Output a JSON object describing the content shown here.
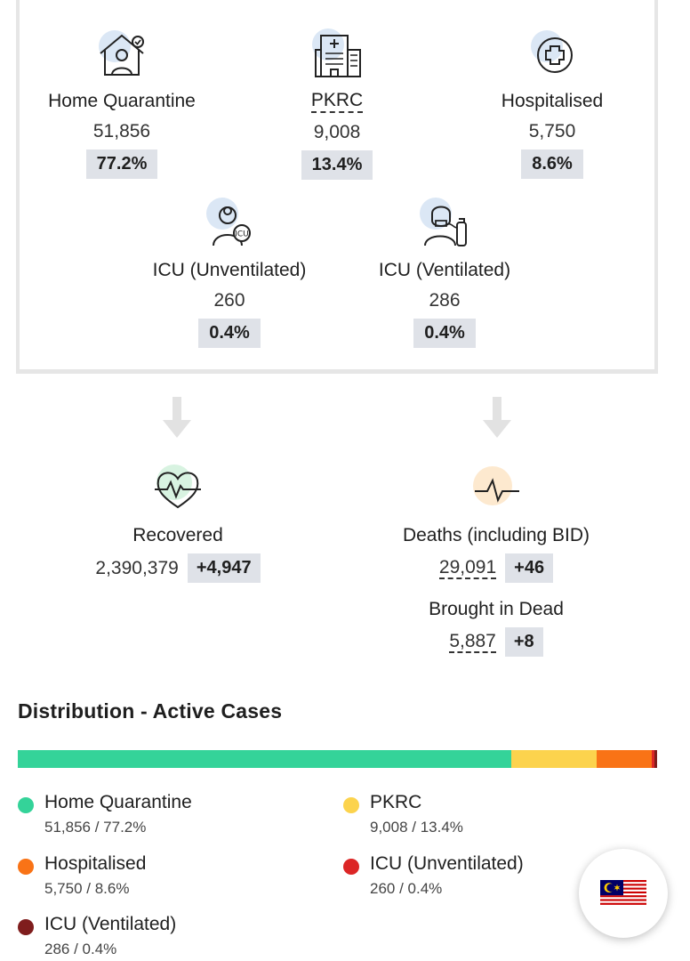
{
  "stats": [
    {
      "label": "Home Quarantine",
      "value": "51,856",
      "pct": "77.2%",
      "icon": "house-person-icon"
    },
    {
      "label": "PKRC",
      "value": "9,008",
      "pct": "13.4%",
      "icon": "building-icon"
    },
    {
      "label": "Hospitalised",
      "value": "5,750",
      "pct": "8.6%",
      "icon": "medical-cross-icon"
    },
    {
      "label": "ICU (Unventilated)",
      "value": "260",
      "pct": "0.4%",
      "icon": "icu-doctor-icon"
    },
    {
      "label": "ICU (Ventilated)",
      "value": "286",
      "pct": "0.4%",
      "icon": "ventilator-patient-icon"
    }
  ],
  "recovered": {
    "label": "Recovered",
    "value": "2,390,379",
    "delta": "+4,947",
    "icon": "heartbeat-icon"
  },
  "deaths": {
    "label": "Deaths (including BID)",
    "value": "29,091",
    "delta": "+46",
    "icon": "pulse-line-icon"
  },
  "bid": {
    "label": "Brought in Dead",
    "value": "5,887",
    "delta": "+8"
  },
  "distribution": {
    "title": "Distribution - Active Cases",
    "items": [
      {
        "name": "Home Quarantine",
        "sub": "51,856 / 77.2%",
        "color": "#34d399",
        "fraction": 0.772
      },
      {
        "name": "PKRC",
        "sub": "9,008 / 13.4%",
        "color": "#fcd34d",
        "fraction": 0.134
      },
      {
        "name": "Hospitalised",
        "sub": "5,750 / 8.6%",
        "color": "#f97316",
        "fraction": 0.086
      },
      {
        "name": "ICU (Unventilated)",
        "sub": "260 / 0.4%",
        "color": "#dc2626",
        "fraction": 0.004
      },
      {
        "name": "ICU (Ventilated)",
        "sub": "286 / 0.4%",
        "color": "#7f1d1d",
        "fraction": 0.004
      }
    ]
  },
  "flag_button": {
    "icon": "malaysia-flag-icon"
  }
}
